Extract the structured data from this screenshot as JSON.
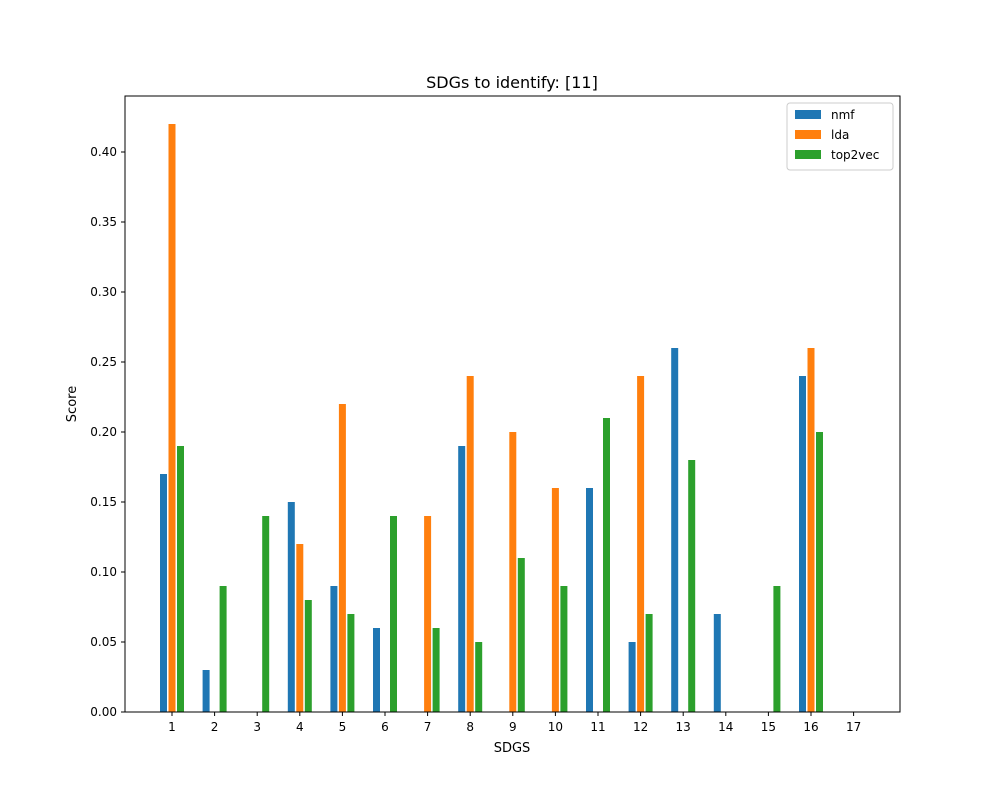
{
  "chart_data": {
    "type": "bar",
    "title": "SDGs to identify: [11]",
    "xlabel": "SDGS",
    "ylabel": "Score",
    "ylim": [
      0,
      0.44
    ],
    "yticks": [
      "0.00",
      "0.05",
      "0.10",
      "0.15",
      "0.20",
      "0.25",
      "0.30",
      "0.35",
      "0.40"
    ],
    "categories": [
      "1",
      "2",
      "3",
      "4",
      "5",
      "6",
      "7",
      "8",
      "9",
      "10",
      "11",
      "12",
      "13",
      "14",
      "15",
      "16",
      "17"
    ],
    "grid": false,
    "legend_position": "top-right",
    "series": [
      {
        "name": "nmf",
        "color": "#1f77b4",
        "values": [
          0.17,
          0.03,
          0,
          0.15,
          0.09,
          0.06,
          0,
          0.19,
          0,
          0,
          0.16,
          0.05,
          0.26,
          0.07,
          0,
          0.24,
          0
        ]
      },
      {
        "name": "lda",
        "color": "#ff7f0e",
        "values": [
          0.42,
          0,
          0,
          0.12,
          0.22,
          0,
          0.14,
          0.24,
          0.2,
          0.16,
          0,
          0.24,
          0,
          0,
          0,
          0.26,
          0
        ]
      },
      {
        "name": "top2vec",
        "color": "#2ca02c",
        "values": [
          0.19,
          0.09,
          0.14,
          0.08,
          0.07,
          0.14,
          0.06,
          0.05,
          0.11,
          0.09,
          0.21,
          0.07,
          0.18,
          0,
          0.09,
          0.2,
          0
        ]
      }
    ]
  }
}
